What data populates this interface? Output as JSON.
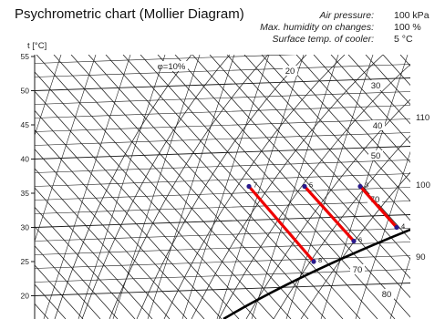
{
  "header": {
    "title": "Psychrometric chart (Mollier Diagram)",
    "rows": [
      {
        "label": "Air pressure:",
        "value": "100 kPa"
      },
      {
        "label": "Max. humidity on changes:",
        "value": "100 %"
      },
      {
        "label": "Surface temp. of cooler:",
        "value": "5 °C"
      }
    ]
  },
  "colors": {
    "grid": "#1a1a1a",
    "saturation": "#000000",
    "process": "#ee0000",
    "marker": "#2a1a8c"
  },
  "chart_data": {
    "type": "line",
    "title": "Psychrometric chart (Mollier Diagram)",
    "ylabel": "t [°C]",
    "ylim": [
      19,
      55
    ],
    "y_ticks": [
      20,
      25,
      30,
      35,
      40,
      45,
      50,
      55
    ],
    "rh_label": "φ=10%",
    "rh_inner_labels": [
      "20",
      "30",
      "40",
      "50",
      "70",
      "70",
      "80"
    ],
    "enthalpy_labels": [
      "110",
      "100",
      "90"
    ],
    "processes": [
      {
        "from": "7",
        "to": "8",
        "t_from": 36,
        "t_to": 25
      },
      {
        "from": "5",
        "to": "6",
        "t_from": 36,
        "t_to": 28
      },
      {
        "from": "3",
        "to": "4",
        "t_from": 36,
        "t_to": 30
      }
    ],
    "points": [
      {
        "label": "7",
        "t": 36
      },
      {
        "label": "8",
        "t": 25
      },
      {
        "label": "5",
        "t": 36
      },
      {
        "label": "6",
        "t": 28
      },
      {
        "label": "3",
        "t": 36
      },
      {
        "label": "4",
        "t": 30
      }
    ]
  }
}
